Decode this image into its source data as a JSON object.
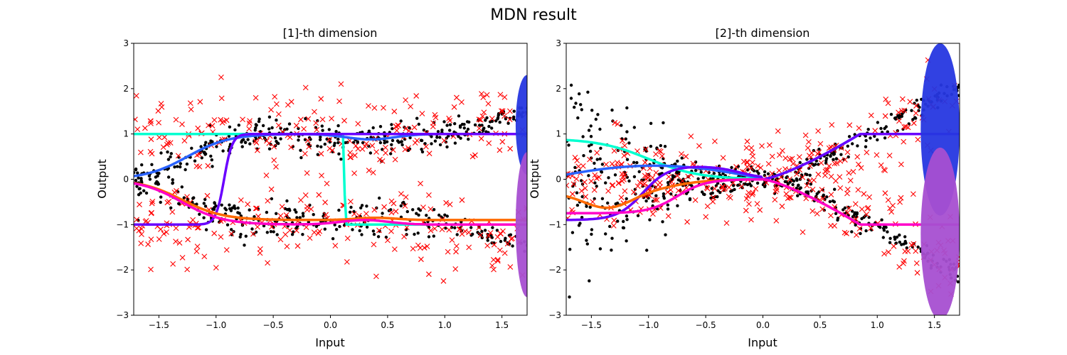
{
  "figure": {
    "suptitle": "MDN result"
  },
  "chart_data": [
    {
      "type": "scatter",
      "title": "[1]-th dimension",
      "xlabel": "Input",
      "ylabel": "Output",
      "xlim": [
        -1.72,
        1.72
      ],
      "ylim": [
        -3,
        3
      ],
      "xticks": [
        "−1.5",
        "−1.0",
        "−0.5",
        "0.0",
        "0.5",
        "1.0",
        "1.5"
      ],
      "xtick_values": [
        -1.5,
        -1.0,
        -0.5,
        0.0,
        0.5,
        1.0,
        1.5
      ],
      "yticks": [
        "−3",
        "−2",
        "−1",
        "0",
        "1",
        "2",
        "3"
      ],
      "ytick_values": [
        -3,
        -2,
        -1,
        0,
        1,
        2,
        3
      ],
      "grid": false,
      "data_scatter": {
        "color": "#000000",
        "marker": "dot",
        "n_points": 1200,
        "trend_upper": "y = 0 at x=-1.7 rising to ~1 by x=-0.7, flat ~0.85-0.95 to x=1.0, then rising to ~1.8 at x=1.72",
        "trend_lower": "mirror of upper, falling to ~-1.8 at x=1.72",
        "noise_sd": 0.22
      },
      "sample_scatter": {
        "color": "#ff0000",
        "marker": "x",
        "n_points": 400,
        "y_range": [
          -2.3,
          2.25
        ]
      },
      "mixture_lines": [
        {
          "color": "#00ffd0",
          "shape": "flat 1.0 from -1.72 to 0.1, sharp drop to -1.0 at 0.12, flat -1.0 to 1.72"
        },
        {
          "color": "#2962ff",
          "shape": "0 at -1.72 rising to 1.0 by -0.7, flat 1.0 to 1.72"
        },
        {
          "color": "#6a00ff",
          "shape": "flat -1.0 from -1.72 to -1.0, sharp rise to 1.0 by -0.85, flat 1.0 to 1.72"
        },
        {
          "color": "#ff6a00",
          "shape": "0 at -1.72 falling to -0.9 by -0.7, flat ~-0.9 to 1.72"
        },
        {
          "color": "#ff00c8",
          "shape": "0 at -1.72 falling to -1.0 by -0.7, flat -1.0 to 1.72"
        }
      ],
      "ellipses": [
        {
          "color": "#2637e0",
          "center_x": 1.72,
          "center_y": 1.2,
          "half_width": 0.1,
          "half_height": 1.1
        },
        {
          "color": "#a64fd1",
          "center_x": 1.72,
          "center_y": -1.0,
          "half_width": 0.1,
          "half_height": 1.6
        }
      ]
    },
    {
      "type": "scatter",
      "title": "[2]-th dimension",
      "xlabel": "Input",
      "ylabel": "Output",
      "xlim": [
        -1.72,
        1.72
      ],
      "ylim": [
        -3,
        3
      ],
      "xticks": [
        "−1.5",
        "−1.0",
        "−0.5",
        "0.0",
        "0.5",
        "1.0",
        "1.5"
      ],
      "xtick_values": [
        -1.5,
        -1.0,
        -0.5,
        0.0,
        0.5,
        1.0,
        1.5
      ],
      "yticks": [
        "−3",
        "−2",
        "−1",
        "0",
        "1",
        "2",
        "3"
      ],
      "ytick_values": [
        -3,
        -2,
        -1,
        0,
        1,
        2,
        3
      ],
      "grid": false,
      "data_scatter": {
        "color": "#000000",
        "marker": "dot",
        "n_points": 1200,
        "trend_upper": "wide spread at x=-1.7 (~-1.5 to 2.1), converging to 0 at x=0, rising to ~2.1 at x=1.72",
        "trend_lower": "converging to 0 at x=0, falling to ~-2.1 at x=1.72",
        "noise_sd": 0.25
      },
      "sample_scatter": {
        "color": "#ff0000",
        "marker": "x",
        "n_points": 400,
        "y_range": [
          -2.7,
          2.65
        ]
      },
      "mixture_lines": [
        {
          "color": "#00ffd0",
          "shape": "0.9 at -1.72 falling to 0 by 0, rising to 1.0 by 0.85, flat 1.0 to 1.72"
        },
        {
          "color": "#2962ff",
          "shape": "0 at -1.72 up to 0.3 at -1.0, to 0 at 0, up to 1.0 by 0.85, flat"
        },
        {
          "color": "#6a00ff",
          "shape": "-0.9 at -1.72, rising through 0.25 at -0.8, to 0 at 0, up to 1.0 by 0.85, flat"
        },
        {
          "color": "#ff6a00",
          "shape": "-0.25 at -1.72 falling to -0.55 at -1.4, to 0 at 0, down to -1.0 by 0.85, flat"
        },
        {
          "color": "#ff00c8",
          "shape": "-0.75 at -1.72, to -0.1 at -0.7, to 0 at 0, down to -1.0 by 0.85, flat"
        }
      ],
      "ellipses": [
        {
          "color": "#2637e0",
          "center_x": 1.55,
          "center_y": 1.1,
          "half_width": 0.17,
          "half_height": 1.9
        },
        {
          "color": "#a64fd1",
          "center_x": 1.55,
          "center_y": -1.2,
          "half_width": 0.17,
          "half_height": 1.9
        }
      ]
    }
  ]
}
